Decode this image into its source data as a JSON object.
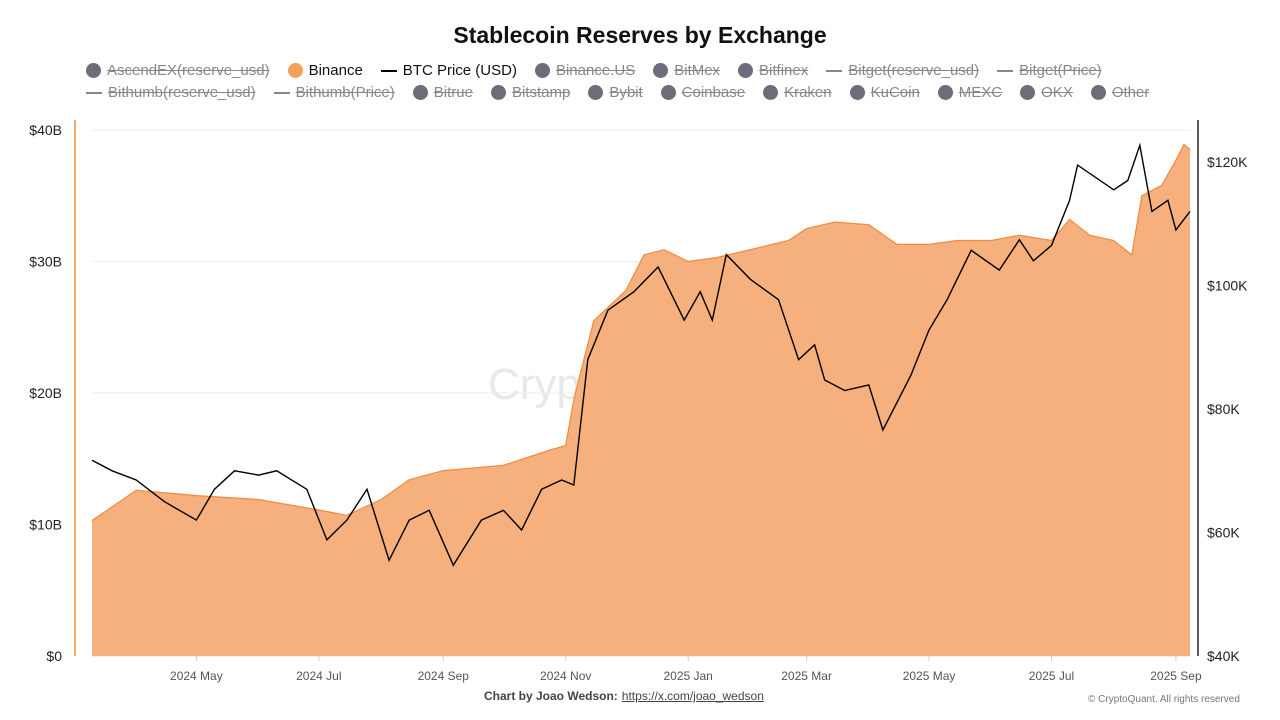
{
  "chart_data": {
    "type": "area",
    "title": "Stablecoin Reserves by Exchange",
    "legend": [
      {
        "name": "AscendEX(reserve_usd)",
        "marker": "dot",
        "active": false
      },
      {
        "name": "Binance",
        "marker": "dot",
        "active": true,
        "color": "#f5a05a"
      },
      {
        "name": "BTC Price (USD)",
        "marker": "line",
        "active": true,
        "color": "#000000"
      },
      {
        "name": "Binance.US",
        "marker": "dot",
        "active": false
      },
      {
        "name": "BitMex",
        "marker": "dot",
        "active": false
      },
      {
        "name": "Bitfinex",
        "marker": "dot",
        "active": false
      },
      {
        "name": "Bitget(reserve_usd)",
        "marker": "line",
        "active": false
      },
      {
        "name": "Bitget(Price)",
        "marker": "line",
        "active": false
      },
      {
        "name": "Bithumb(reserve_usd)",
        "marker": "line",
        "active": false
      },
      {
        "name": "Bithumb(Price)",
        "marker": "line",
        "active": false
      },
      {
        "name": "Bitrue",
        "marker": "dot",
        "active": false
      },
      {
        "name": "Bitstamp",
        "marker": "dot",
        "active": false
      },
      {
        "name": "Bybit",
        "marker": "dot",
        "active": false
      },
      {
        "name": "Coinbase",
        "marker": "dot",
        "active": false
      },
      {
        "name": "Kraken",
        "marker": "dot",
        "active": false
      },
      {
        "name": "KuCoin",
        "marker": "dot",
        "active": false
      },
      {
        "name": "MEXC",
        "marker": "dot",
        "active": false
      },
      {
        "name": "OKX",
        "marker": "dot",
        "active": false
      },
      {
        "name": "Other",
        "marker": "dot",
        "active": false
      }
    ],
    "legend_placement": "top",
    "x_ticks": [
      "2024 May",
      "2024 Jul",
      "2024 Sep",
      "2024 Nov",
      "2025 Jan",
      "2025 Mar",
      "2025 May",
      "2025 Jul",
      "2025 Sep"
    ],
    "x_tick_dates": [
      "2024-05-01",
      "2024-07-01",
      "2024-09-01",
      "2024-11-01",
      "2025-01-01",
      "2025-03-01",
      "2025-05-01",
      "2025-07-01",
      "2025-09-01"
    ],
    "xlim": [
      "2024-03-10",
      "2025-09-08"
    ],
    "y_left": {
      "ticks": [
        "$0",
        "$10B",
        "$20B",
        "$30B",
        "$40B"
      ],
      "values": [
        0,
        10,
        20,
        30,
        40
      ],
      "unit": "B USD",
      "ylim": [
        0,
        42
      ]
    },
    "y_right": {
      "ticks": [
        "$40K",
        "$60K",
        "$80K",
        "$100K",
        "$120K"
      ],
      "values": [
        40,
        60,
        80,
        100,
        120
      ],
      "unit": "K USD",
      "ylim": [
        40,
        125
      ]
    },
    "grid": true,
    "series": [
      {
        "name": "Binance",
        "axis": "left",
        "type": "area",
        "color": "#f5b07e",
        "line_color": "#f08a3c",
        "points": [
          [
            "2024-03-10",
            10.3
          ],
          [
            "2024-04-01",
            12.6
          ],
          [
            "2024-05-01",
            12.2
          ],
          [
            "2024-06-01",
            11.9
          ],
          [
            "2024-07-01",
            11.1
          ],
          [
            "2024-07-15",
            10.7
          ],
          [
            "2024-08-01",
            11.9
          ],
          [
            "2024-08-15",
            13.4
          ],
          [
            "2024-09-01",
            14.1
          ],
          [
            "2024-10-01",
            14.5
          ],
          [
            "2024-10-25",
            15.7
          ],
          [
            "2024-11-01",
            16.0
          ],
          [
            "2024-11-05",
            19.5
          ],
          [
            "2024-11-15",
            25.5
          ],
          [
            "2024-12-01",
            27.8
          ],
          [
            "2024-12-10",
            30.5
          ],
          [
            "2024-12-20",
            30.9
          ],
          [
            "2025-01-01",
            30.0
          ],
          [
            "2025-01-15",
            30.3
          ],
          [
            "2025-02-01",
            30.9
          ],
          [
            "2025-02-20",
            31.6
          ],
          [
            "2025-03-01",
            32.5
          ],
          [
            "2025-03-15",
            33.0
          ],
          [
            "2025-04-01",
            32.8
          ],
          [
            "2025-04-15",
            31.3
          ],
          [
            "2025-05-01",
            31.3
          ],
          [
            "2025-05-15",
            31.6
          ],
          [
            "2025-06-01",
            31.6
          ],
          [
            "2025-06-15",
            32.0
          ],
          [
            "2025-07-01",
            31.6
          ],
          [
            "2025-07-10",
            33.2
          ],
          [
            "2025-07-20",
            32.0
          ],
          [
            "2025-08-01",
            31.6
          ],
          [
            "2025-08-10",
            30.5
          ],
          [
            "2025-08-15",
            35.0
          ],
          [
            "2025-08-25",
            35.8
          ],
          [
            "2025-09-01",
            37.7
          ],
          [
            "2025-09-05",
            38.9
          ],
          [
            "2025-09-08",
            38.5
          ]
        ]
      },
      {
        "name": "BTC Price (USD)",
        "axis": "right",
        "type": "line",
        "color": "#000000",
        "points": [
          [
            "2024-03-10",
            71.7
          ],
          [
            "2024-03-20",
            70.0
          ],
          [
            "2024-04-01",
            68.5
          ],
          [
            "2024-04-15",
            65.0
          ],
          [
            "2024-05-01",
            62.0
          ],
          [
            "2024-05-10",
            67.0
          ],
          [
            "2024-05-20",
            70.0
          ],
          [
            "2024-06-01",
            69.3
          ],
          [
            "2024-06-10",
            70.0
          ],
          [
            "2024-06-25",
            67.0
          ],
          [
            "2024-07-05",
            58.8
          ],
          [
            "2024-07-15",
            62.0
          ],
          [
            "2024-07-25",
            67.0
          ],
          [
            "2024-08-05",
            55.5
          ],
          [
            "2024-08-15",
            62.0
          ],
          [
            "2024-08-25",
            63.6
          ],
          [
            "2024-09-06",
            54.7
          ],
          [
            "2024-09-20",
            62.0
          ],
          [
            "2024-10-01",
            63.6
          ],
          [
            "2024-10-10",
            60.4
          ],
          [
            "2024-10-20",
            67.0
          ],
          [
            "2024-10-30",
            68.5
          ],
          [
            "2024-11-05",
            67.7
          ],
          [
            "2024-11-12",
            88.0
          ],
          [
            "2024-11-22",
            96.0
          ],
          [
            "2024-12-05",
            99.0
          ],
          [
            "2024-12-17",
            103.0
          ],
          [
            "2024-12-30",
            94.4
          ],
          [
            "2025-01-07",
            99.0
          ],
          [
            "2025-01-13",
            94.4
          ],
          [
            "2025-01-20",
            105.0
          ],
          [
            "2025-02-01",
            101.0
          ],
          [
            "2025-02-15",
            97.7
          ],
          [
            "2025-02-25",
            88.0
          ],
          [
            "2025-03-05",
            90.4
          ],
          [
            "2025-03-10",
            84.7
          ],
          [
            "2025-03-20",
            83.0
          ],
          [
            "2025-04-01",
            83.9
          ],
          [
            "2025-04-08",
            76.6
          ],
          [
            "2025-04-22",
            85.5
          ],
          [
            "2025-05-01",
            92.8
          ],
          [
            "2025-05-10",
            97.7
          ],
          [
            "2025-05-22",
            105.7
          ],
          [
            "2025-06-05",
            102.5
          ],
          [
            "2025-06-15",
            107.4
          ],
          [
            "2025-06-22",
            104.0
          ],
          [
            "2025-07-01",
            106.5
          ],
          [
            "2025-07-10",
            113.8
          ],
          [
            "2025-07-14",
            119.5
          ],
          [
            "2025-08-01",
            115.5
          ],
          [
            "2025-08-08",
            117.0
          ],
          [
            "2025-08-14",
            122.7
          ],
          [
            "2025-08-20",
            112.0
          ],
          [
            "2025-08-28",
            113.8
          ],
          [
            "2025-09-01",
            109.0
          ],
          [
            "2025-09-08",
            112.0
          ]
        ]
      }
    ]
  },
  "watermark": "CryptoQuant",
  "footer": {
    "credit": "Chart by Joao Wedson:",
    "link": "https://x.com/joao_wedson",
    "copyright": "© CryptoQuant. All rights reserved"
  }
}
